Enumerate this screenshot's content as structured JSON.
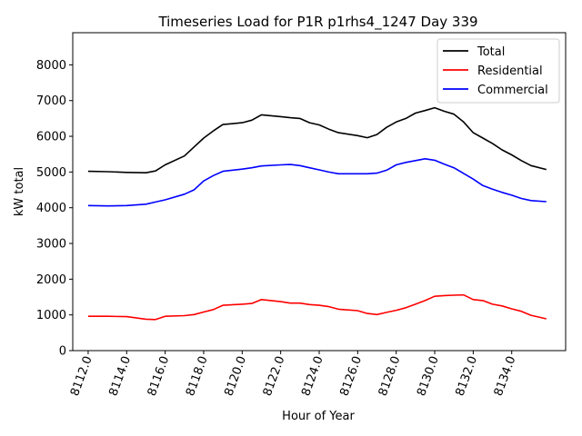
{
  "chart_data": {
    "type": "line",
    "title": "Timeseries Load for P1R p1rhs4_1247  Day 339",
    "xlabel": "Hour of Year",
    "ylabel": "kW total",
    "xlim": [
      8111.2,
      8136.8
    ],
    "ylim": [
      0,
      8900
    ],
    "x_ticks": [
      8112,
      8114,
      8116,
      8118,
      8120,
      8122,
      8124,
      8126,
      8128,
      8130,
      8132,
      8134
    ],
    "x_tick_labels": [
      "8112.0",
      "8114.0",
      "8116.0",
      "8118.0",
      "8120.0",
      "8122.0",
      "8124.0",
      "8126.0",
      "8128.0",
      "8130.0",
      "8132.0",
      "8134.0"
    ],
    "y_ticks": [
      0,
      1000,
      2000,
      3000,
      4000,
      5000,
      6000,
      7000,
      8000
    ],
    "y_tick_labels": [
      "0",
      "1000",
      "2000",
      "3000",
      "4000",
      "5000",
      "6000",
      "7000",
      "8000"
    ],
    "legend_position": "top-right",
    "x": [
      8112,
      8113,
      8114,
      8115,
      8115.5,
      8116,
      8117,
      8117.5,
      8118,
      8118.5,
      8119,
      8120,
      8120.5,
      8121,
      8122,
      8122.5,
      8123,
      8123.5,
      8124,
      8124.5,
      8125,
      8126,
      8126.5,
      8127,
      8127.5,
      8128,
      8128.5,
      8129,
      8129.5,
      8130,
      8130.5,
      8131,
      8131.5,
      8132,
      8132.5,
      8133,
      8133.5,
      8134,
      8134.5,
      8135,
      8135.8
    ],
    "series": [
      {
        "name": "Total",
        "color": "#000000",
        "values": [
          5020,
          5010,
          4990,
          4980,
          5030,
          5200,
          5450,
          5700,
          5950,
          6150,
          6330,
          6380,
          6450,
          6600,
          6550,
          6520,
          6500,
          6380,
          6320,
          6200,
          6100,
          6020,
          5960,
          6050,
          6250,
          6400,
          6500,
          6650,
          6720,
          6800,
          6700,
          6620,
          6400,
          6100,
          5950,
          5800,
          5620,
          5480,
          5320,
          5180,
          5070
        ]
      },
      {
        "name": "Residential",
        "color": "#ff0000",
        "values": [
          960,
          960,
          950,
          880,
          870,
          960,
          980,
          1010,
          1080,
          1150,
          1270,
          1300,
          1320,
          1430,
          1370,
          1330,
          1330,
          1290,
          1270,
          1230,
          1160,
          1120,
          1040,
          1010,
          1070,
          1130,
          1200,
          1300,
          1400,
          1520,
          1540,
          1550,
          1560,
          1430,
          1400,
          1300,
          1250,
          1170,
          1100,
          990,
          890
        ]
      },
      {
        "name": "Commercial",
        "color": "#0000ff",
        "values": [
          4060,
          4050,
          4060,
          4100,
          4160,
          4220,
          4380,
          4500,
          4750,
          4900,
          5020,
          5080,
          5120,
          5170,
          5200,
          5210,
          5180,
          5120,
          5060,
          5000,
          4950,
          4950,
          4950,
          4970,
          5050,
          5200,
          5270,
          5320,
          5370,
          5330,
          5220,
          5120,
          4960,
          4800,
          4620,
          4520,
          4430,
          4350,
          4260,
          4200,
          4170
        ]
      }
    ]
  }
}
